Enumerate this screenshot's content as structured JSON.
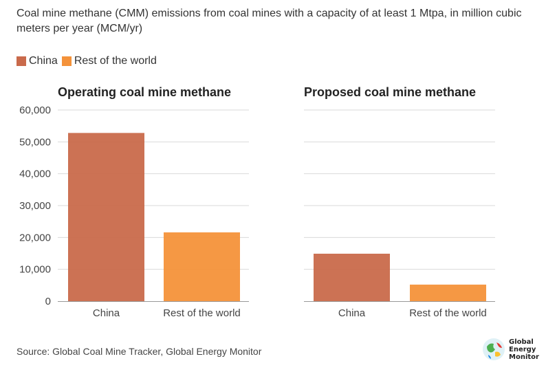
{
  "header": {
    "title": "Coal mine methane (CMM) emissions from coal mines with a capacity of at least 1 Mtpa, in million cubic meters per year (MCM/yr)"
  },
  "legend": [
    {
      "label": "China",
      "color": "#c96a4b"
    },
    {
      "label": "Rest of the world",
      "color": "#f4923a"
    }
  ],
  "chart_data": [
    {
      "type": "bar",
      "title": "Operating coal mine methane",
      "categories": [
        "China",
        "Rest of the world"
      ],
      "values": [
        52800,
        21600
      ],
      "colors": [
        "#c96a4b",
        "#f4923a"
      ],
      "ylim": [
        0,
        60000
      ],
      "yticks": [
        "0",
        "10,000",
        "20,000",
        "30,000",
        "40,000",
        "50,000",
        "60,000"
      ],
      "xlabel": "",
      "ylabel": ""
    },
    {
      "type": "bar",
      "title": "Proposed coal mine methane",
      "categories": [
        "China",
        "Rest of the world"
      ],
      "values": [
        14900,
        5200
      ],
      "colors": [
        "#c96a4b",
        "#f4923a"
      ],
      "ylim": [
        0,
        60000
      ],
      "xlabel": "",
      "ylabel": ""
    }
  ],
  "footer": {
    "source": "Source: Global Coal Mine Tracker, Global Energy Monitor",
    "logo_lines": [
      "Global",
      "Energy",
      "Monitor"
    ]
  }
}
